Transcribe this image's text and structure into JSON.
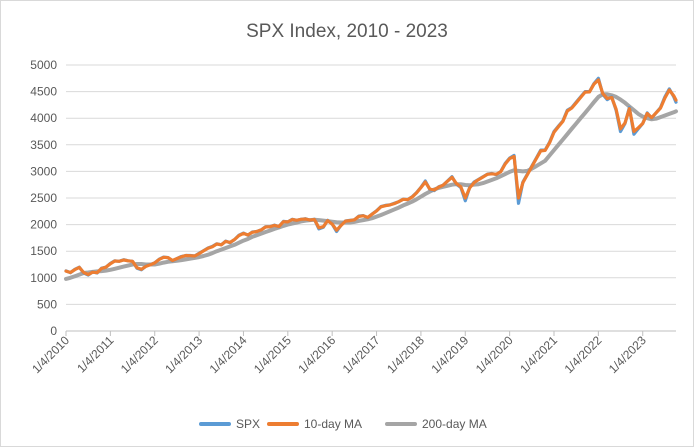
{
  "chart_data": {
    "type": "line",
    "title": "SPX Index, 2010 - 2023",
    "xlabel": "",
    "ylabel": "",
    "ylim": [
      0,
      5000
    ],
    "yticks": [
      0,
      500,
      1000,
      1500,
      2000,
      2500,
      3000,
      3500,
      4000,
      4500,
      5000
    ],
    "grid": true,
    "legend_position": "bottom",
    "x_range": [
      2010.0,
      2023.75
    ],
    "xtick_labels": [
      "1/4/2010",
      "1/4/2011",
      "1/4/2012",
      "1/4/2013",
      "1/4/2014",
      "1/4/2015",
      "1/4/2016",
      "1/4/2017",
      "1/4/2018",
      "1/4/2019",
      "1/4/2020",
      "1/4/2021",
      "1/4/2022",
      "1/4/2023"
    ],
    "x": [
      2010.0,
      2010.1,
      2010.2,
      2010.3,
      2010.4,
      2010.5,
      2010.6,
      2010.7,
      2010.8,
      2010.9,
      2011.0,
      2011.1,
      2011.2,
      2011.3,
      2011.4,
      2011.5,
      2011.6,
      2011.7,
      2011.8,
      2011.9,
      2012.0,
      2012.1,
      2012.2,
      2012.3,
      2012.4,
      2012.5,
      2012.6,
      2012.7,
      2012.8,
      2012.9,
      2013.0,
      2013.1,
      2013.2,
      2013.3,
      2013.4,
      2013.5,
      2013.6,
      2013.7,
      2013.8,
      2013.9,
      2014.0,
      2014.1,
      2014.2,
      2014.3,
      2014.4,
      2014.5,
      2014.6,
      2014.7,
      2014.8,
      2014.9,
      2015.0,
      2015.1,
      2015.2,
      2015.3,
      2015.4,
      2015.5,
      2015.6,
      2015.7,
      2015.8,
      2015.9,
      2016.0,
      2016.1,
      2016.2,
      2016.3,
      2016.4,
      2016.5,
      2016.6,
      2016.7,
      2016.8,
      2016.9,
      2017.0,
      2017.1,
      2017.2,
      2017.3,
      2017.4,
      2017.5,
      2017.6,
      2017.7,
      2017.8,
      2017.9,
      2018.0,
      2018.1,
      2018.2,
      2018.3,
      2018.4,
      2018.5,
      2018.6,
      2018.7,
      2018.8,
      2018.9,
      2019.0,
      2019.1,
      2019.2,
      2019.3,
      2019.4,
      2019.5,
      2019.6,
      2019.7,
      2019.8,
      2019.9,
      2020.0,
      2020.1,
      2020.2,
      2020.3,
      2020.4,
      2020.5,
      2020.6,
      2020.7,
      2020.8,
      2020.9,
      2021.0,
      2021.1,
      2021.2,
      2021.3,
      2021.4,
      2021.5,
      2021.6,
      2021.7,
      2021.8,
      2021.9,
      2022.0,
      2022.1,
      2022.2,
      2022.3,
      2022.4,
      2022.5,
      2022.6,
      2022.7,
      2022.8,
      2022.9,
      2023.0,
      2023.1,
      2023.2,
      2023.3,
      2023.4,
      2023.5,
      2023.6,
      2023.7,
      2023.75
    ],
    "series": [
      {
        "name": "SPX",
        "color": "#5b9bd5",
        "values": [
          1130,
          1095,
          1160,
          1200,
          1090,
          1050,
          1110,
          1090,
          1180,
          1200,
          1270,
          1320,
          1310,
          1340,
          1320,
          1310,
          1180,
          1150,
          1220,
          1250,
          1280,
          1350,
          1390,
          1380,
          1320,
          1360,
          1400,
          1420,
          1420,
          1410,
          1460,
          1510,
          1560,
          1590,
          1640,
          1620,
          1690,
          1660,
          1720,
          1800,
          1840,
          1800,
          1860,
          1870,
          1900,
          1960,
          1960,
          1990,
          1960,
          2060,
          2050,
          2100,
          2080,
          2100,
          2110,
          2080,
          2100,
          1920,
          1950,
          2080,
          2010,
          1870,
          1990,
          2070,
          2080,
          2090,
          2160,
          2170,
          2130,
          2200,
          2260,
          2340,
          2360,
          2370,
          2400,
          2430,
          2480,
          2470,
          2520,
          2600,
          2700,
          2820,
          2660,
          2640,
          2710,
          2740,
          2820,
          2900,
          2760,
          2700,
          2450,
          2700,
          2800,
          2850,
          2900,
          2950,
          2960,
          2940,
          3000,
          3150,
          3250,
          3300,
          2400,
          2800,
          2950,
          3100,
          3250,
          3400,
          3400,
          3550,
          3750,
          3850,
          3950,
          4150,
          4200,
          4300,
          4400,
          4500,
          4500,
          4650,
          4750,
          4450,
          4350,
          4400,
          4150,
          3750,
          3900,
          4200,
          3700,
          3800,
          3900,
          4100,
          4000,
          4100,
          4200,
          4400,
          4550,
          4400,
          4300
        ]
      },
      {
        "name": "10-day MA",
        "color": "#ed7d31",
        "values": [
          1125,
          1100,
          1155,
          1195,
          1100,
          1060,
          1105,
          1095,
          1175,
          1200,
          1265,
          1315,
          1310,
          1335,
          1320,
          1310,
          1190,
          1160,
          1215,
          1245,
          1280,
          1345,
          1385,
          1380,
          1325,
          1360,
          1395,
          1420,
          1415,
          1410,
          1455,
          1505,
          1555,
          1585,
          1635,
          1620,
          1685,
          1665,
          1720,
          1795,
          1835,
          1805,
          1855,
          1870,
          1900,
          1955,
          1960,
          1985,
          1965,
          2055,
          2050,
          2095,
          2080,
          2100,
          2105,
          2085,
          2095,
          1940,
          1960,
          2075,
          2010,
          1895,
          1985,
          2065,
          2075,
          2090,
          2155,
          2165,
          2135,
          2195,
          2255,
          2335,
          2355,
          2370,
          2395,
          2430,
          2475,
          2470,
          2515,
          2595,
          2695,
          2800,
          2670,
          2650,
          2705,
          2740,
          2815,
          2890,
          2770,
          2710,
          2500,
          2690,
          2790,
          2845,
          2895,
          2945,
          2955,
          2945,
          2995,
          3140,
          3240,
          3280,
          2500,
          2790,
          2940,
          3090,
          3240,
          3385,
          3395,
          3540,
          3735,
          3840,
          3940,
          4135,
          4190,
          4290,
          4390,
          4490,
          4495,
          4640,
          4720,
          4460,
          4370,
          4390,
          4170,
          3800,
          3910,
          4180,
          3750,
          3820,
          3900,
          4090,
          4010,
          4100,
          4190,
          4380,
          4530,
          4420,
          4340
        ]
      },
      {
        "name": "200-day MA",
        "color": "#a5a5a5",
        "values": [
          980,
          1000,
          1030,
          1060,
          1090,
          1100,
          1110,
          1120,
          1125,
          1135,
          1150,
          1170,
          1190,
          1210,
          1230,
          1250,
          1260,
          1260,
          1250,
          1250,
          1250,
          1265,
          1285,
          1300,
          1310,
          1320,
          1330,
          1345,
          1360,
          1375,
          1390,
          1410,
          1435,
          1465,
          1500,
          1530,
          1560,
          1590,
          1620,
          1660,
          1700,
          1730,
          1770,
          1800,
          1830,
          1860,
          1890,
          1920,
          1945,
          1975,
          2000,
          2020,
          2040,
          2060,
          2075,
          2085,
          2090,
          2085,
          2075,
          2065,
          2055,
          2045,
          2040,
          2040,
          2040,
          2050,
          2070,
          2085,
          2100,
          2120,
          2150,
          2180,
          2215,
          2250,
          2285,
          2320,
          2360,
          2395,
          2430,
          2475,
          2525,
          2575,
          2620,
          2660,
          2690,
          2710,
          2730,
          2750,
          2760,
          2760,
          2745,
          2740,
          2750,
          2760,
          2780,
          2810,
          2840,
          2870,
          2910,
          2950,
          2990,
          3020,
          3010,
          3000,
          3010,
          3050,
          3100,
          3150,
          3200,
          3300,
          3400,
          3500,
          3600,
          3700,
          3800,
          3900,
          4000,
          4100,
          4200,
          4300,
          4400,
          4450,
          4450,
          4430,
          4400,
          4350,
          4290,
          4220,
          4150,
          4080,
          4030,
          4000,
          3980,
          3990,
          4020,
          4050,
          4080,
          4110,
          4130
        ]
      }
    ]
  }
}
